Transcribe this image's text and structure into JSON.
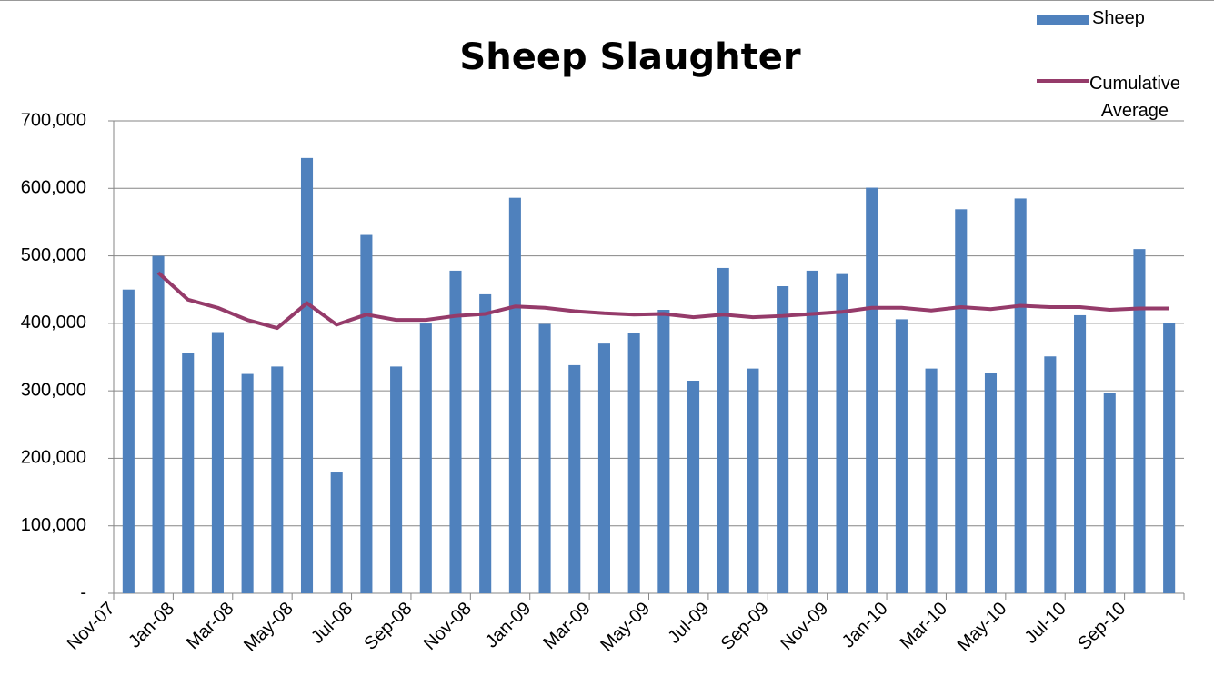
{
  "chart_data": {
    "type": "combo",
    "title": "Sheep Slaughter",
    "categories": [
      "Nov-07",
      null,
      "Jan-08",
      null,
      "Mar-08",
      null,
      "May-08",
      null,
      "Jul-08",
      null,
      "Sep-08",
      null,
      "Nov-08",
      null,
      "Jan-09",
      null,
      "Mar-09",
      null,
      "May-09",
      null,
      "Jul-09",
      null,
      "Sep-09",
      null,
      "Nov-09",
      null,
      "Jan-10",
      null,
      "Mar-10",
      null,
      "May-10",
      null,
      "Jul-10",
      null,
      "Sep-10",
      null
    ],
    "series": [
      {
        "name": "Sheep",
        "type": "bar",
        "color": "#4f81bd",
        "values": [
          450000,
          500000,
          356000,
          387000,
          325000,
          336000,
          645000,
          179000,
          531000,
          336000,
          400000,
          478000,
          443000,
          586000,
          399000,
          338000,
          370000,
          385000,
          420000,
          315000,
          482000,
          333000,
          455000,
          478000,
          473000,
          601000,
          406000,
          333000,
          569000,
          326000,
          585000,
          351000,
          412000,
          297000,
          510000,
          400000
        ]
      },
      {
        "name": "Cumulative Average",
        "type": "line",
        "color": "#953b6a",
        "values": [
          null,
          475000,
          435000,
          423000,
          405000,
          393000,
          430000,
          398000,
          413000,
          405000,
          405000,
          411000,
          414000,
          425000,
          423000,
          418000,
          415000,
          413000,
          414000,
          409000,
          413000,
          409000,
          411000,
          414000,
          417000,
          423000,
          423000,
          419000,
          424000,
          421000,
          426000,
          424000,
          424000,
          420000,
          422000,
          422000
        ]
      }
    ],
    "ylim": [
      0,
      700000
    ],
    "yticks": [
      {
        "value": 0,
        "label": "-"
      },
      {
        "value": 100000,
        "label": "100,000"
      },
      {
        "value": 200000,
        "label": "200,000"
      },
      {
        "value": 300000,
        "label": "300,000"
      },
      {
        "value": 400000,
        "label": "400,000"
      },
      {
        "value": 500000,
        "label": "500,000"
      },
      {
        "value": 600000,
        "label": "600,000"
      },
      {
        "value": 700000,
        "label": "700,000"
      }
    ],
    "grid": true,
    "legend": "top-right"
  }
}
